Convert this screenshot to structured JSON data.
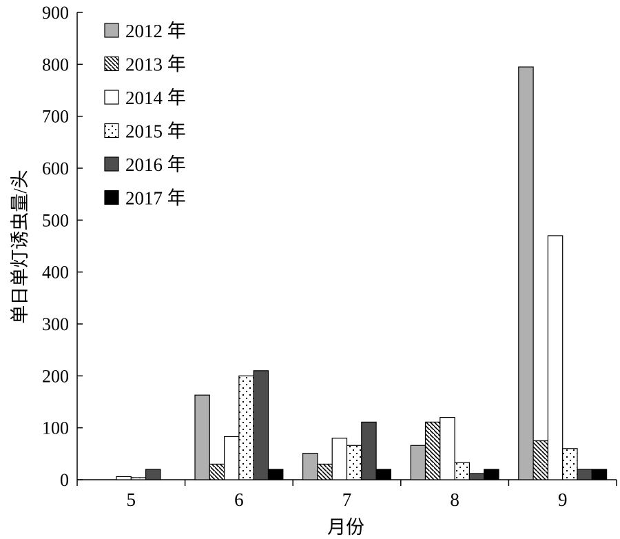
{
  "chart_data": {
    "type": "bar",
    "title": "",
    "xlabel": "月份",
    "ylabel": "单日单灯诱虫量/头",
    "categories": [
      "5",
      "6",
      "7",
      "8",
      "9"
    ],
    "ylim": [
      0,
      900
    ],
    "yticks": [
      0,
      100,
      200,
      300,
      400,
      500,
      600,
      700,
      800,
      900
    ],
    "grid": false,
    "legend_position": "top-left",
    "series": [
      {
        "name": "2012 年",
        "fill": "gray",
        "values": [
          0,
          163,
          51,
          66,
          795
        ]
      },
      {
        "name": "2013 年",
        "fill": "hatch",
        "values": [
          0,
          30,
          30,
          111,
          75
        ]
      },
      {
        "name": "2014 年",
        "fill": "white",
        "values": [
          6,
          83,
          80,
          120,
          470
        ]
      },
      {
        "name": "2015 年",
        "fill": "dotted",
        "values": [
          4,
          200,
          66,
          33,
          60
        ]
      },
      {
        "name": "2016 年",
        "fill": "dark",
        "values": [
          20,
          210,
          111,
          12,
          20
        ]
      },
      {
        "name": "2017 年",
        "fill": "black",
        "values": [
          0,
          20,
          20,
          20,
          20
        ]
      }
    ]
  }
}
